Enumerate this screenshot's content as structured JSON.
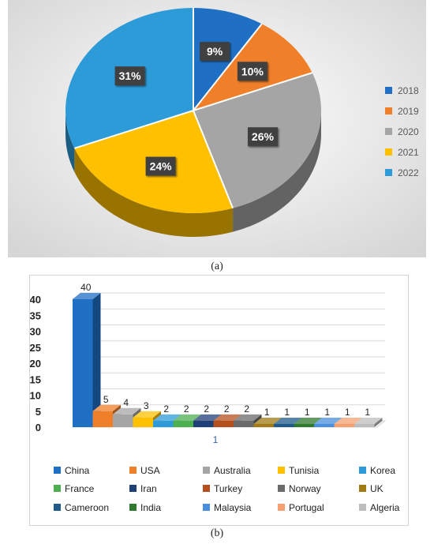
{
  "caption_a": "(a)",
  "caption_b": "(b)",
  "chart_data": [
    {
      "type": "pie",
      "categories": [
        "2018",
        "2019",
        "2020",
        "2021",
        "2022"
      ],
      "values": [
        9,
        10,
        26,
        24,
        31
      ],
      "labels": [
        "9%",
        "10%",
        "26%",
        "24%",
        "31%"
      ],
      "colors": [
        "#1f6fc5",
        "#f07f2a",
        "#a5a5a5",
        "#ffc000",
        "#2e9bd9"
      ],
      "legend_position": "right",
      "style": "3d"
    },
    {
      "type": "bar",
      "x_tick_labels": [
        "1"
      ],
      "categories": [
        "China",
        "USA",
        "Australia",
        "Tunisia",
        "Korea",
        "France",
        "Iran",
        "Turkey",
        "Norway",
        "UK",
        "Cameroon",
        "India",
        "Malaysia",
        "Portugal",
        "Algeria"
      ],
      "values": [
        40,
        5,
        4,
        3,
        2,
        2,
        2,
        2,
        2,
        1,
        1,
        1,
        1,
        1,
        1
      ],
      "colors": [
        "#1f6fc5",
        "#f07f2a",
        "#a5a5a5",
        "#ffc000",
        "#2e9bd9",
        "#4caf50",
        "#1f3f77",
        "#b5501e",
        "#6b6b6b",
        "#a07a12",
        "#1f5a8a",
        "#2f7a2f",
        "#4a8fdb",
        "#f4a070",
        "#bdbdbd"
      ],
      "ylim": [
        0,
        40
      ],
      "yticks": [
        "0",
        "5",
        "10",
        "15",
        "20",
        "25",
        "30",
        "35",
        "40"
      ],
      "legend_position": "bottom",
      "grid": true,
      "style": "3d"
    }
  ]
}
